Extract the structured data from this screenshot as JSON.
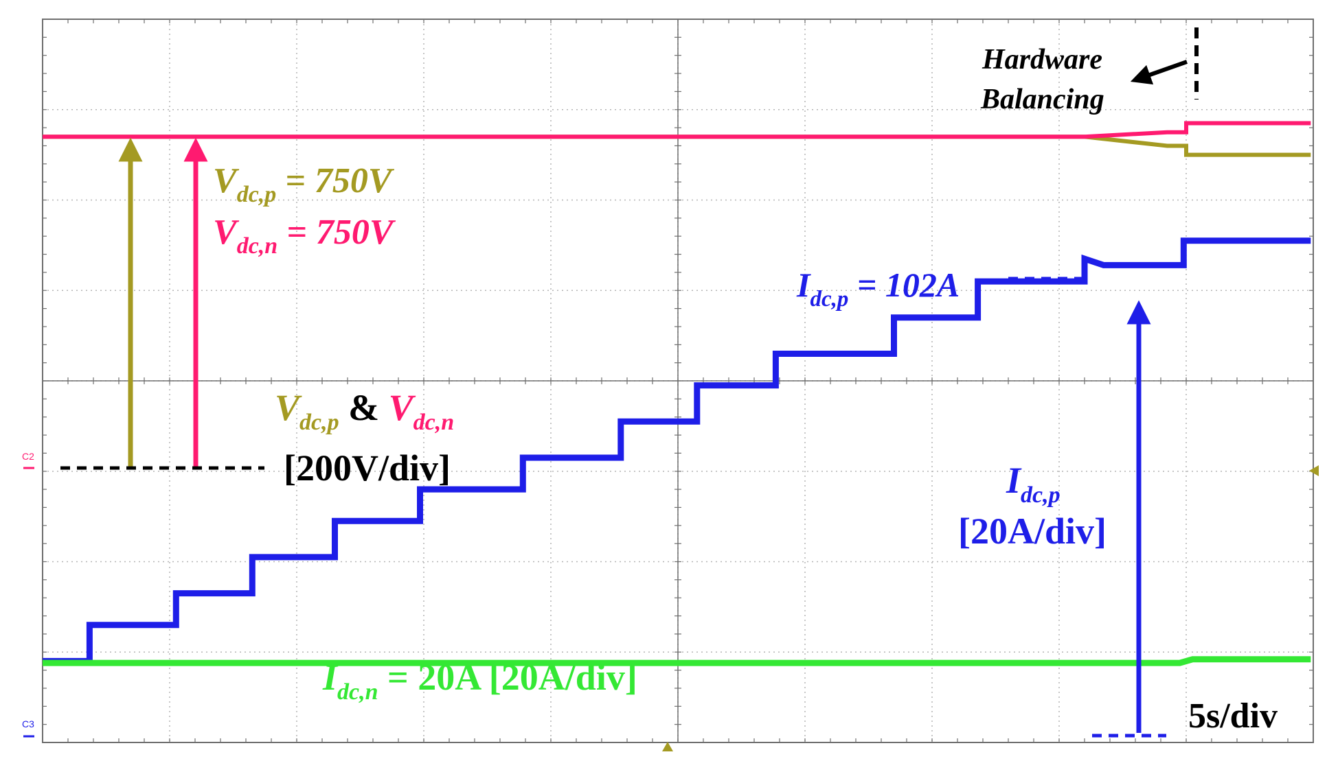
{
  "chart_data": {
    "type": "line",
    "x_unit_label": "5s/div",
    "x_divisions": 10,
    "y_divisions": 8,
    "series": [
      {
        "id": "vdcp",
        "color": "#a49a22",
        "points": [
          [
            0,
            6.7
          ],
          [
            8.2,
            6.7
          ],
          [
            8.85,
            6.6
          ],
          [
            9.0,
            6.6
          ],
          [
            9.0,
            6.5
          ],
          [
            9.98,
            6.5
          ]
        ]
      },
      {
        "id": "vdcn",
        "color": "#ff1a70",
        "points": [
          [
            0,
            6.7
          ],
          [
            8.2,
            6.7
          ],
          [
            8.85,
            6.75
          ],
          [
            9.0,
            6.75
          ],
          [
            9.0,
            6.85
          ],
          [
            9.98,
            6.85
          ]
        ]
      },
      {
        "id": "idcp",
        "color": "#1e1ee8",
        "points": [
          [
            0,
            0.9
          ],
          [
            0.37,
            0.9
          ],
          [
            0.37,
            1.3
          ],
          [
            1.05,
            1.3
          ],
          [
            1.05,
            1.65
          ],
          [
            1.65,
            1.65
          ],
          [
            1.65,
            2.05
          ],
          [
            2.3,
            2.05
          ],
          [
            2.3,
            2.45
          ],
          [
            2.97,
            2.45
          ],
          [
            2.97,
            2.8
          ],
          [
            3.78,
            2.8
          ],
          [
            3.78,
            3.15
          ],
          [
            4.55,
            3.15
          ],
          [
            4.55,
            3.55
          ],
          [
            5.15,
            3.55
          ],
          [
            5.15,
            3.95
          ],
          [
            5.77,
            3.95
          ],
          [
            5.77,
            4.3
          ],
          [
            6.7,
            4.3
          ],
          [
            6.7,
            4.7
          ],
          [
            7.36,
            4.7
          ],
          [
            7.36,
            5.1
          ],
          [
            8.2,
            5.1
          ],
          [
            8.2,
            5.35
          ],
          [
            8.35,
            5.28
          ],
          [
            8.98,
            5.28
          ],
          [
            8.98,
            5.55
          ],
          [
            9.98,
            5.55
          ]
        ]
      },
      {
        "id": "idcn",
        "color": "#34e834",
        "points": [
          [
            0,
            0.88
          ],
          [
            8.95,
            0.88
          ],
          [
            9.05,
            0.92
          ],
          [
            9.98,
            0.92
          ]
        ]
      }
    ],
    "markers": {
      "c2_label": "C2",
      "c3_label": "C3"
    }
  },
  "annotations": {
    "vdcp_line": {
      "main": "V",
      "sub": "dc,p",
      "value": " = 750V"
    },
    "vdcn_line": {
      "main": "V",
      "sub": "dc,n",
      "value": " = 750V"
    },
    "idcp_value": {
      "main": "I",
      "sub": "dc,p",
      "value": " = 102A"
    },
    "v_scale_p": {
      "main": "V",
      "sub": "dc,p"
    },
    "v_scale_amp": " & ",
    "v_scale_n": {
      "main": "V",
      "sub": "dc,n"
    },
    "v_scale_div": "[200V/div]",
    "idcp_scale": {
      "main": "I",
      "sub": "dc,p",
      "div": "[20A/div]"
    },
    "idcn_line": {
      "main": "I",
      "sub": "dc,n",
      "value": " = 20A [20A/div]"
    },
    "hw_line1": "Hardware",
    "hw_line2": "Balancing",
    "time_div": "5s/div"
  },
  "colors": {
    "vdcp": "#a49a22",
    "vdcn": "#ff1a70",
    "idcp": "#1e1ee8",
    "idcn": "#34e834",
    "grid": "#b4b4b4",
    "axis": "#6e6e6e",
    "text_black": "#000000"
  }
}
